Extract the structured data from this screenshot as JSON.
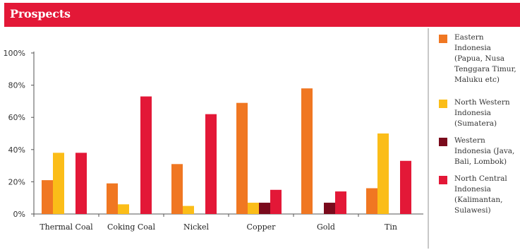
{
  "header": {
    "title": "Prospects",
    "color": "#e31837"
  },
  "chart_data": {
    "type": "bar",
    "categories": [
      "Thermal Coal",
      "Coking Coal",
      "Nickel",
      "Copper",
      "Gold",
      "Tin"
    ],
    "series": [
      {
        "name": "Eastern Indonesia (Papua, Nusa Tenggara Timur, Maluku etc)",
        "color": "#f07722",
        "values": [
          21,
          19,
          31,
          69,
          78,
          16
        ]
      },
      {
        "name": "North Western Indonesia (Sumatera)",
        "color": "#fbbd18",
        "values": [
          38,
          6,
          5,
          7,
          0,
          50
        ]
      },
      {
        "name": "Western Indonesia (Java, Bali, Lombok)",
        "color": "#7a0a1c",
        "values": [
          0,
          0,
          0,
          7,
          7,
          0
        ]
      },
      {
        "name": "North Central Indonesia (Kalimantan, Sulawesi)",
        "color": "#e31837",
        "values": [
          38,
          73,
          62,
          15,
          14,
          33
        ]
      }
    ],
    "yticks": [
      "0%",
      "20%",
      "40%",
      "60%",
      "80%",
      "100%"
    ],
    "ylim": [
      0,
      100
    ],
    "title": "",
    "xlabel": "",
    "ylabel": "",
    "grid": false,
    "legend_position": "right"
  }
}
